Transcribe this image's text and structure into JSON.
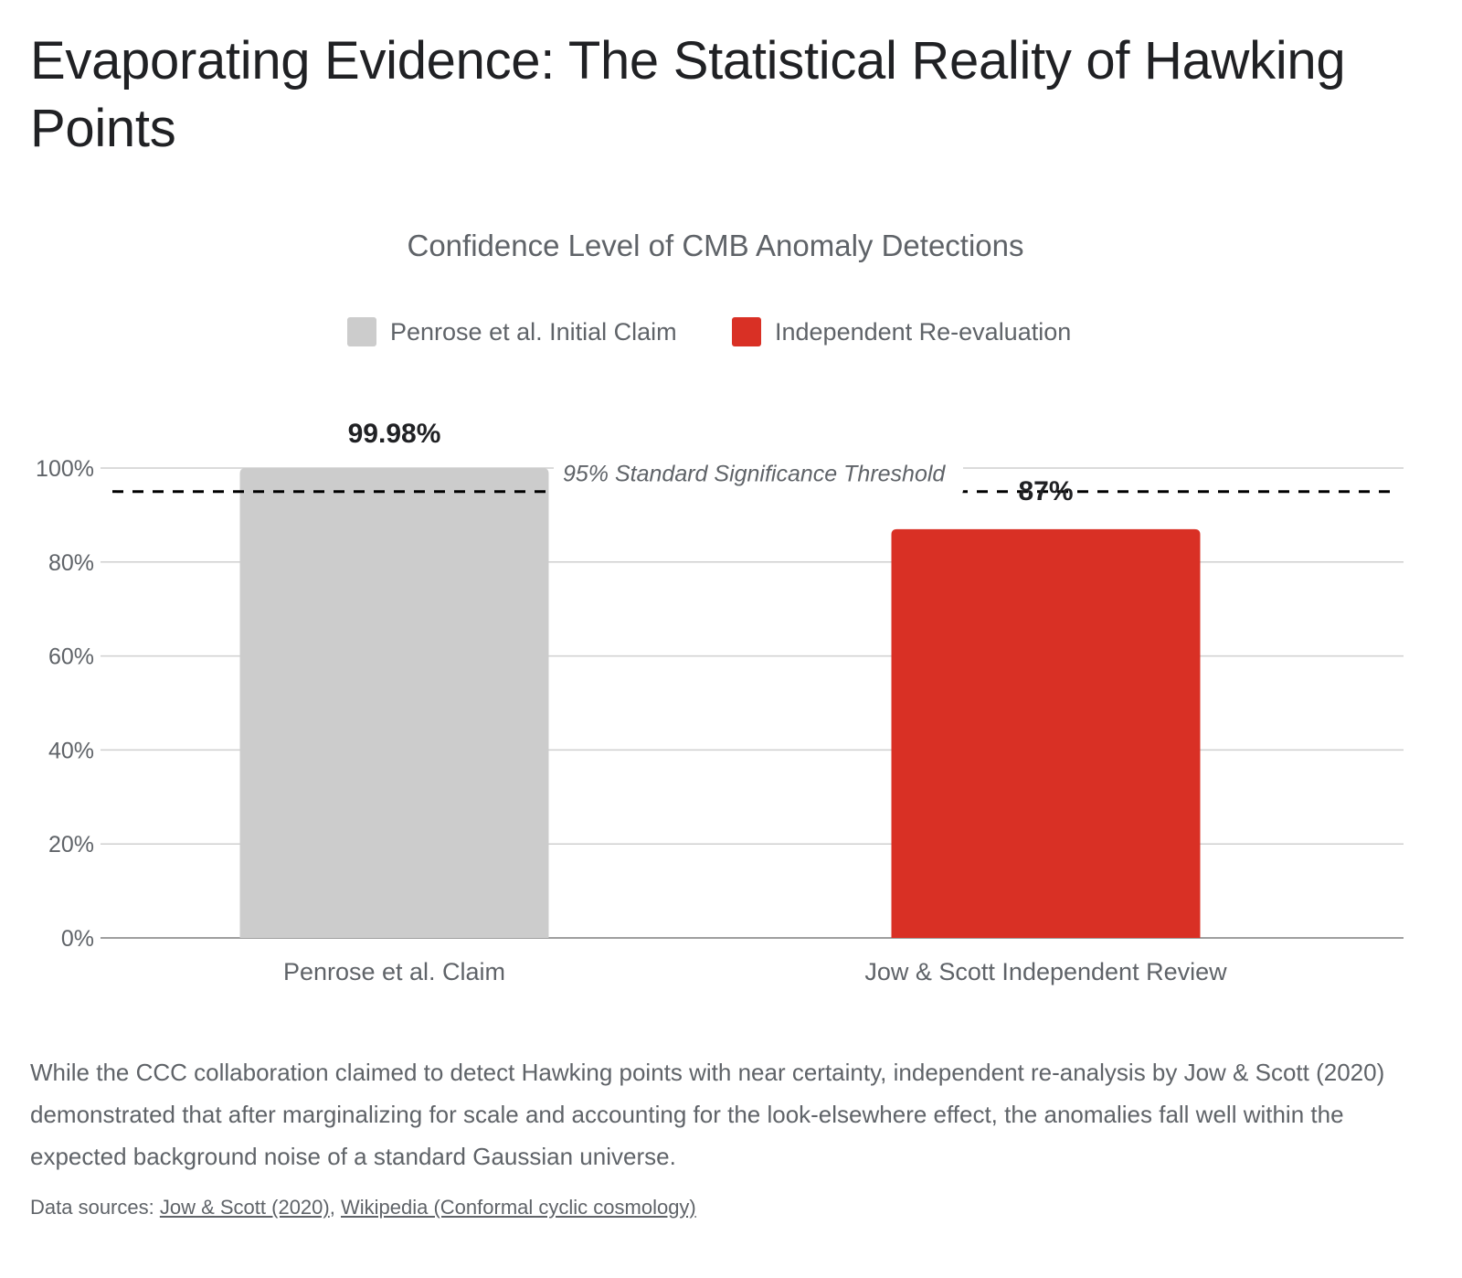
{
  "page": {
    "title": "Evaporating Evidence: The Statistical Reality of Hawking Points",
    "description": "While the CCC collaboration claimed to detect Hawking points with near certainty, independent re-analysis by Jow & Scott (2020) demonstrated that after marginalizing for scale and accounting for the look-elsewhere effect, the anomalies fall well within the expected background noise of a standard Gaussian universe.",
    "sources_label": "Data sources:",
    "sources": [
      {
        "text": "Jow & Scott (2020)"
      },
      {
        "text": "Wikipedia (Conformal cyclic cosmology)"
      }
    ],
    "sources_separator": ","
  },
  "chart_data": {
    "type": "bar",
    "title": "Confidence Level of CMB Anomaly Detections",
    "categories": [
      "Penrose et al. Claim",
      "Jow & Scott Independent Review"
    ],
    "values": [
      99.98,
      87
    ],
    "data_labels": [
      "99.98%",
      "87%"
    ],
    "bar_series_index": [
      0,
      1
    ],
    "series": [
      {
        "name": "Penrose et al. Initial Claim",
        "color": "#cccccc"
      },
      {
        "name": "Independent Re-evaluation",
        "color": "#d93025"
      }
    ],
    "ylim": [
      0,
      100
    ],
    "yticks": [
      0,
      20,
      40,
      60,
      80,
      100
    ],
    "ytick_labels": [
      "0%",
      "20%",
      "40%",
      "60%",
      "80%",
      "100%"
    ],
    "grid": true,
    "legend_position": "top",
    "threshold": {
      "value": 95,
      "label": "95% Standard Significance Threshold",
      "style": "dashed",
      "color": "#000000"
    }
  }
}
